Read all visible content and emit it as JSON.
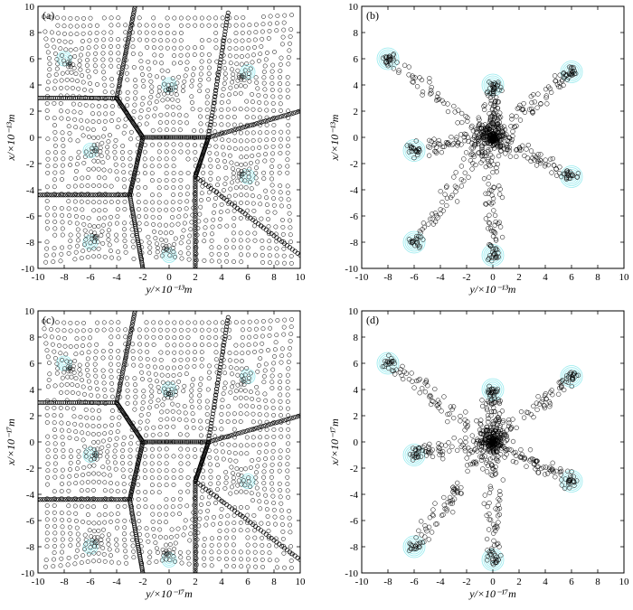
{
  "figure": {
    "panels": [
      {
        "label": "(a)",
        "xlabel": "y/×10⁻¹³m",
        "ylabel": "x/×10⁻¹³m",
        "kind": "grid"
      },
      {
        "label": "(b)",
        "xlabel": "y/×10⁻¹³m",
        "ylabel": "x/×10⁻¹³m",
        "kind": "star"
      },
      {
        "label": "(c)",
        "xlabel": "y/×10⁻¹⁷m",
        "ylabel": "x/×10⁻¹⁷m",
        "kind": "grid"
      },
      {
        "label": "(d)",
        "xlabel": "y/×10⁻¹⁷m",
        "ylabel": "x/×10⁻¹⁷m",
        "kind": "star"
      }
    ],
    "ticks": [
      "-10",
      "-8",
      "-6",
      "-4",
      "-2",
      "0",
      "2",
      "4",
      "6",
      "8",
      "10"
    ],
    "colors": {
      "particle": "#000000",
      "well": "#40d8e0",
      "frame": "#000000"
    }
  },
  "chart_data": [
    {
      "type": "scatter",
      "title": "",
      "panel_label": "(a)",
      "xlabel": "y/×10⁻¹³m",
      "ylabel": "x/×10⁻¹³m",
      "xlim": [
        -10,
        10
      ],
      "ylim": [
        -10,
        10
      ],
      "wells": [
        [
          -8,
          6
        ],
        [
          0,
          4
        ],
        [
          6,
          5
        ],
        [
          -6,
          -1
        ],
        [
          6,
          -3
        ],
        [
          -6,
          -8
        ],
        [
          0,
          -9
        ]
      ],
      "description_points": "open-circle particle trajectories converging to the seven well centres",
      "series": [
        {
          "values": [
            [
              -8,
              6
            ],
            [
              0,
              4
            ],
            [
              6,
              5
            ],
            [
              -6,
              -1
            ],
            [
              6,
              -3
            ],
            [
              -6,
              -8
            ],
            [
              0,
              -9
            ]
          ]
        }
      ]
    },
    {
      "type": "scatter",
      "title": "",
      "panel_label": "(b)",
      "xlabel": "y/×10⁻¹³m",
      "ylabel": "x/×10⁻¹³m",
      "xlim": [
        -10,
        10
      ],
      "ylim": [
        -10,
        10
      ],
      "wells": [
        [
          -8,
          6
        ],
        [
          0,
          4
        ],
        [
          6,
          5
        ],
        [
          -6,
          -1
        ],
        [
          6,
          -3
        ],
        [
          -6,
          -8
        ],
        [
          0,
          -9
        ]
      ],
      "series": [
        {
          "values": [
            [
              -8,
              6
            ],
            [
              0,
              4
            ],
            [
              6,
              5
            ],
            [
              -6,
              -1
            ],
            [
              6,
              -3
            ],
            [
              -6,
              -8
            ],
            [
              0,
              -9
            ],
            [
              0,
              0
            ]
          ]
        }
      ]
    },
    {
      "type": "scatter",
      "title": "",
      "panel_label": "(c)",
      "xlabel": "y/×10⁻¹⁷m",
      "ylabel": "x/×10⁻¹⁷m",
      "xlim": [
        -10,
        10
      ],
      "ylim": [
        -10,
        10
      ],
      "wells": [
        [
          -8,
          6
        ],
        [
          0,
          4
        ],
        [
          6,
          5
        ],
        [
          -6,
          -1
        ],
        [
          6,
          -3
        ],
        [
          -6,
          -8
        ],
        [
          0,
          -9
        ]
      ],
      "series": [
        {
          "values": [
            [
              -8,
              6
            ],
            [
              0,
              4
            ],
            [
              6,
              5
            ],
            [
              -6,
              -1
            ],
            [
              6,
              -3
            ],
            [
              -6,
              -8
            ],
            [
              0,
              -9
            ]
          ]
        }
      ]
    },
    {
      "type": "scatter",
      "title": "",
      "panel_label": "(d)",
      "xlabel": "y/×10⁻¹⁷m",
      "ylabel": "x/×10⁻¹⁷m",
      "xlim": [
        -10,
        10
      ],
      "ylim": [
        -10,
        10
      ],
      "wells": [
        [
          -8,
          6
        ],
        [
          0,
          4
        ],
        [
          6,
          5
        ],
        [
          -6,
          -1
        ],
        [
          6,
          -3
        ],
        [
          -6,
          -8
        ],
        [
          0,
          -9
        ]
      ],
      "series": [
        {
          "values": [
            [
              -8,
              6
            ],
            [
              0,
              4
            ],
            [
              6,
              5
            ],
            [
              -6,
              -1
            ],
            [
              6,
              -3
            ],
            [
              -6,
              -8
            ],
            [
              0,
              -9
            ],
            [
              0,
              0
            ]
          ]
        }
      ]
    }
  ]
}
